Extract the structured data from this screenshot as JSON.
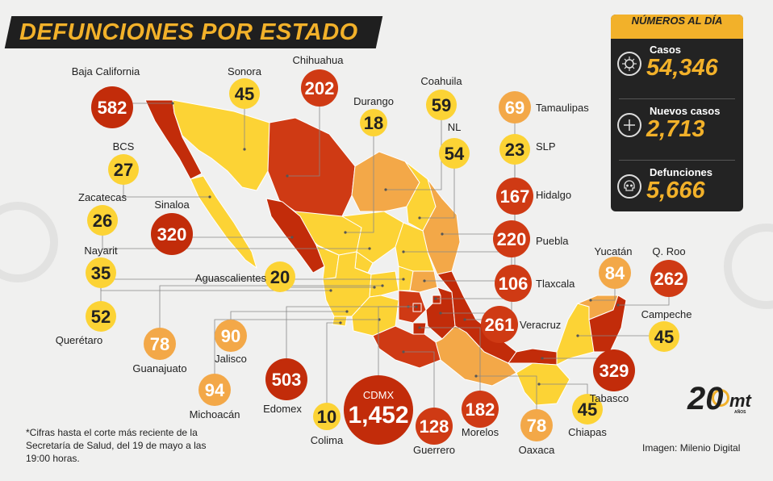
{
  "title": "DEFUNCIONES POR ESTADO",
  "summary": {
    "header": "NÚMEROS AL DÍA",
    "items": [
      {
        "label": "Casos",
        "value": "54,346",
        "icon": "virus-icon"
      },
      {
        "label": "Nuevos casos",
        "value": "2,713",
        "icon": "plus-icon"
      },
      {
        "label": "Defunciones",
        "value": "5,666",
        "icon": "skull-icon"
      }
    ]
  },
  "footnote": "*Cifras hasta el corte más reciente de la Secretaría de Salud, del 19 de mayo a las 19:00 horas.",
  "credit": "Imagen: Milenio Digital",
  "logo": {
    "number": "20",
    "brand": "mt",
    "suffix": "AÑOS"
  },
  "colors": {
    "background": "#f0f0ef",
    "banner": "#1f1f1f",
    "accent": "#f2b12a",
    "low": "#fcd335",
    "mid": "#f3a848",
    "high": "#cf3a14",
    "very_high": "#c22c0a"
  },
  "chart_data": {
    "type": "bubble-map",
    "categories": [
      "Baja California",
      "Sonora",
      "Chihuahua",
      "Durango",
      "Coahuila",
      "Tamaulipas",
      "NL",
      "SLP",
      "BCS",
      "Zacatecas",
      "Sinaloa",
      "Nayarit",
      "Aguascalientes",
      "Querétaro",
      "Guanajuato",
      "Jalisco",
      "Michoacán",
      "Edomex",
      "Colima",
      "CDMX",
      "Guerrero",
      "Morelos",
      "Oaxaca",
      "Chiapas",
      "Hidalgo",
      "Puebla",
      "Tlaxcala",
      "Veracruz",
      "Yucatán",
      "Q. Roo",
      "Campeche",
      "Tabasco"
    ],
    "values": [
      582,
      45,
      202,
      18,
      59,
      69,
      54,
      23,
      27,
      26,
      320,
      35,
      20,
      52,
      78,
      90,
      94,
      503,
      10,
      1452,
      128,
      182,
      78,
      45,
      167,
      220,
      106,
      261,
      84,
      262,
      45,
      329
    ],
    "value_labels": [
      "582",
      "45",
      "202",
      "18",
      "59",
      "69",
      "54",
      "23",
      "27",
      "26",
      "320",
      "35",
      "20",
      "52",
      "78",
      "90",
      "94",
      "503",
      "10",
      "1,452",
      "128",
      "182",
      "78",
      "45",
      "167",
      "220",
      "106",
      "261",
      "84",
      "262",
      "45",
      "329"
    ]
  }
}
